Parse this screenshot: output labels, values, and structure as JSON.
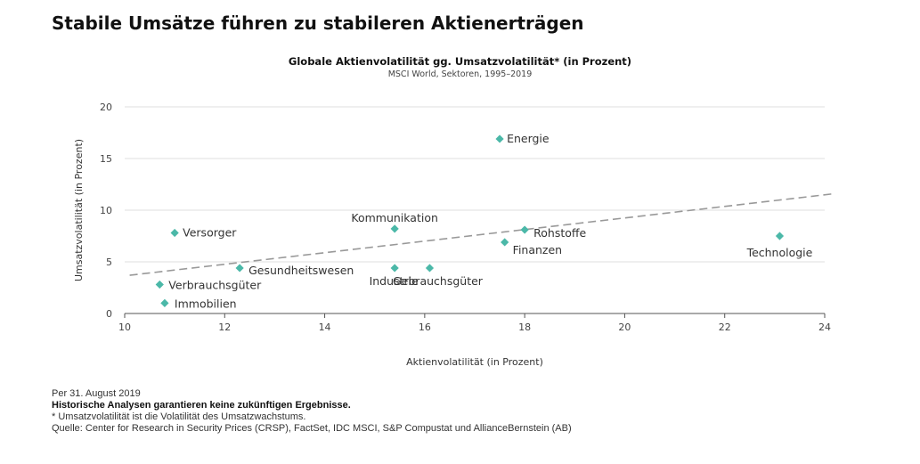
{
  "headline": "Stabile Umsätze führen zu stabileren Aktienerträgen",
  "colors": {
    "marker": "#4bb8a8",
    "trendline": "#999999",
    "grid": "#d4d4d4",
    "axis": "#555555"
  },
  "chart_data": {
    "type": "scatter",
    "title": "Globale Aktienvolatilität gg. Umsatzvolatilität* (in Prozent)",
    "subtitle": "MSCI World, Sektoren, 1995–2019",
    "xlabel": "Aktienvolatilität (in Prozent)",
    "ylabel": "Umsatzvolatilität (in Prozent)",
    "xlim": [
      10,
      24
    ],
    "ylim": [
      0,
      20
    ],
    "xticks": [
      10,
      12,
      14,
      16,
      18,
      20,
      22,
      24
    ],
    "yticks": [
      0,
      5,
      10,
      15,
      20
    ],
    "grid": "horizontal",
    "points": [
      {
        "label": "Energie",
        "x": 17.5,
        "y": 16.9
      },
      {
        "label": "Kommunikation",
        "x": 15.4,
        "y": 8.2
      },
      {
        "label": "Versorger",
        "x": 11.0,
        "y": 7.8
      },
      {
        "label": "Rohstoffe",
        "x": 18.0,
        "y": 8.1
      },
      {
        "label": "Finanzen",
        "x": 17.6,
        "y": 6.9
      },
      {
        "label": "Technologie",
        "x": 23.1,
        "y": 7.5
      },
      {
        "label": "Gesundheitswesen",
        "x": 12.3,
        "y": 4.4
      },
      {
        "label": "Industrie",
        "x": 15.4,
        "y": 4.4
      },
      {
        "label": "Gebrauchsgüter",
        "x": 16.1,
        "y": 4.4
      },
      {
        "label": "Verbrauchsgüter",
        "x": 10.7,
        "y": 2.8
      },
      {
        "label": "Immobilien",
        "x": 10.8,
        "y": 1.0
      }
    ],
    "trendline": {
      "style": "dashed",
      "from": {
        "x": 10.1,
        "y": 3.7
      },
      "to": {
        "x": 24.2,
        "y": 11.6
      }
    }
  },
  "footer": {
    "date": "Per 31. August 2019",
    "disclaimer": "Historische Analysen garantieren keine zukünftigen Ergebnisse.",
    "footnote": "* Umsatzvolatilität ist die Volatilität des Umsatzwachstums.",
    "source": "Quelle: Center for Research in Security Prices (CRSP), FactSet, IDC MSCI, S&P Compustat und AllianceBernstein (AB)"
  }
}
